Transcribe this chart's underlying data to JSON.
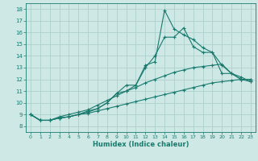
{
  "xlabel": "Humidex (Indice chaleur)",
  "background_color": "#cde8e5",
  "grid_color": "#aed0cd",
  "line_color": "#1a7a6e",
  "xlim": [
    -0.5,
    23.5
  ],
  "ylim": [
    7.5,
    18.5
  ],
  "xticks": [
    0,
    1,
    2,
    3,
    4,
    5,
    6,
    7,
    8,
    9,
    10,
    11,
    12,
    13,
    14,
    15,
    16,
    17,
    18,
    19,
    20,
    21,
    22,
    23
  ],
  "yticks": [
    8,
    9,
    10,
    11,
    12,
    13,
    14,
    15,
    16,
    17,
    18
  ],
  "lines": [
    {
      "x": [
        0,
        1,
        2,
        3,
        4,
        5,
        6,
        7,
        8,
        9,
        10,
        11,
        12,
        13,
        14,
        15,
        16,
        17,
        18,
        19,
        20,
        21,
        22,
        23
      ],
      "y": [
        9.0,
        8.5,
        8.5,
        8.7,
        8.8,
        9.0,
        9.2,
        9.5,
        10.0,
        10.8,
        11.0,
        11.5,
        13.2,
        13.5,
        17.9,
        16.3,
        15.8,
        15.4,
        14.7,
        14.3,
        12.5,
        12.5,
        12.0,
        11.8
      ]
    },
    {
      "x": [
        0,
        1,
        2,
        3,
        4,
        5,
        6,
        7,
        8,
        9,
        10,
        11,
        12,
        13,
        14,
        15,
        16,
        17,
        18,
        19,
        20,
        21,
        22,
        23
      ],
      "y": [
        9.0,
        8.5,
        8.5,
        8.7,
        8.8,
        9.0,
        9.3,
        9.5,
        10.0,
        10.8,
        11.5,
        11.5,
        13.0,
        14.0,
        15.6,
        15.6,
        16.4,
        14.8,
        14.3,
        14.3,
        13.2,
        12.5,
        12.2,
        11.8
      ]
    },
    {
      "x": [
        0,
        1,
        2,
        3,
        4,
        5,
        6,
        7,
        8,
        9,
        10,
        11,
        12,
        13,
        14,
        15,
        16,
        17,
        18,
        19,
        20,
        21,
        22,
        23
      ],
      "y": [
        9.0,
        8.5,
        8.5,
        8.8,
        9.0,
        9.2,
        9.4,
        9.8,
        10.2,
        10.6,
        11.0,
        11.3,
        11.7,
        12.0,
        12.3,
        12.6,
        12.8,
        13.0,
        13.1,
        13.2,
        13.3,
        12.5,
        12.0,
        12.0
      ]
    },
    {
      "x": [
        0,
        1,
        2,
        3,
        4,
        5,
        6,
        7,
        8,
        9,
        10,
        11,
        12,
        13,
        14,
        15,
        16,
        17,
        18,
        19,
        20,
        21,
        22,
        23
      ],
      "y": [
        9.0,
        8.5,
        8.5,
        8.7,
        8.8,
        9.0,
        9.1,
        9.3,
        9.5,
        9.7,
        9.9,
        10.1,
        10.3,
        10.5,
        10.7,
        10.9,
        11.1,
        11.3,
        11.5,
        11.7,
        11.8,
        11.9,
        12.0,
        12.0
      ]
    }
  ]
}
